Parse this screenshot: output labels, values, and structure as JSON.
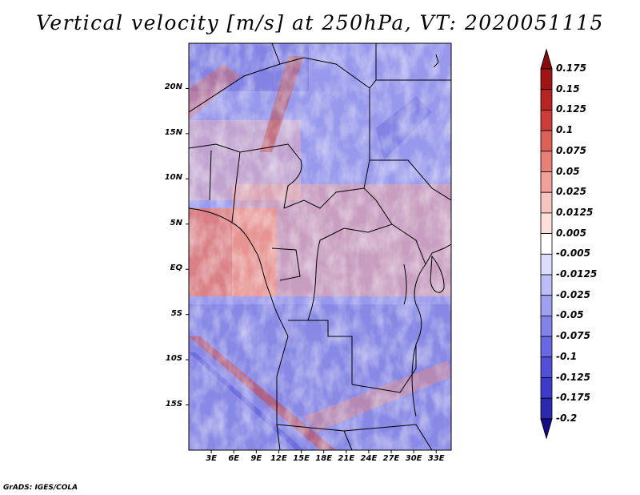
{
  "title": "Vertical velocity [m/s] at 250hPa, VT: 2020051115",
  "credit": "GrADS: IGES/COLA",
  "map": {
    "lat_range": [
      -20,
      25
    ],
    "lon_range": [
      0,
      35
    ],
    "lat_ticks": [
      {
        "value": 20,
        "label": "20N"
      },
      {
        "value": 15,
        "label": "15N"
      },
      {
        "value": 10,
        "label": "10N"
      },
      {
        "value": 5,
        "label": "5N"
      },
      {
        "value": 0,
        "label": "EQ"
      },
      {
        "value": -5,
        "label": "5S"
      },
      {
        "value": -10,
        "label": "10S"
      },
      {
        "value": -15,
        "label": "15S"
      }
    ],
    "lon_ticks": [
      {
        "value": 3,
        "label": "3E"
      },
      {
        "value": 6,
        "label": "6E"
      },
      {
        "value": 9,
        "label": "9E"
      },
      {
        "value": 12,
        "label": "12E"
      },
      {
        "value": 15,
        "label": "15E"
      },
      {
        "value": 18,
        "label": "18E"
      },
      {
        "value": 21,
        "label": "21E"
      },
      {
        "value": 24,
        "label": "24E"
      },
      {
        "value": 27,
        "label": "27E"
      },
      {
        "value": 30,
        "label": "30E"
      },
      {
        "value": 33,
        "label": "33E"
      }
    ]
  },
  "colorbar": {
    "levels": [
      "-0.2",
      "-0.175",
      "-0.125",
      "-0.1",
      "-0.075",
      "-0.05",
      "-0.025",
      "-0.0125",
      "-0.005",
      "0.005",
      "0.0125",
      "0.025",
      "0.05",
      "0.075",
      "0.1",
      "0.125",
      "0.15",
      "0.175"
    ],
    "colors": [
      "#1a0a8c",
      "#2a2ab0",
      "#3c3cc8",
      "#5050d8",
      "#6868e2",
      "#8282ea",
      "#a0a0f0",
      "#bcbcf6",
      "#dcdcfc",
      "#ffffff",
      "#fce0dc",
      "#f8c4be",
      "#f2a09a",
      "#e88078",
      "#de6058",
      "#cc3c38",
      "#b82424",
      "#a01414",
      "#8c0a0a"
    ]
  }
}
